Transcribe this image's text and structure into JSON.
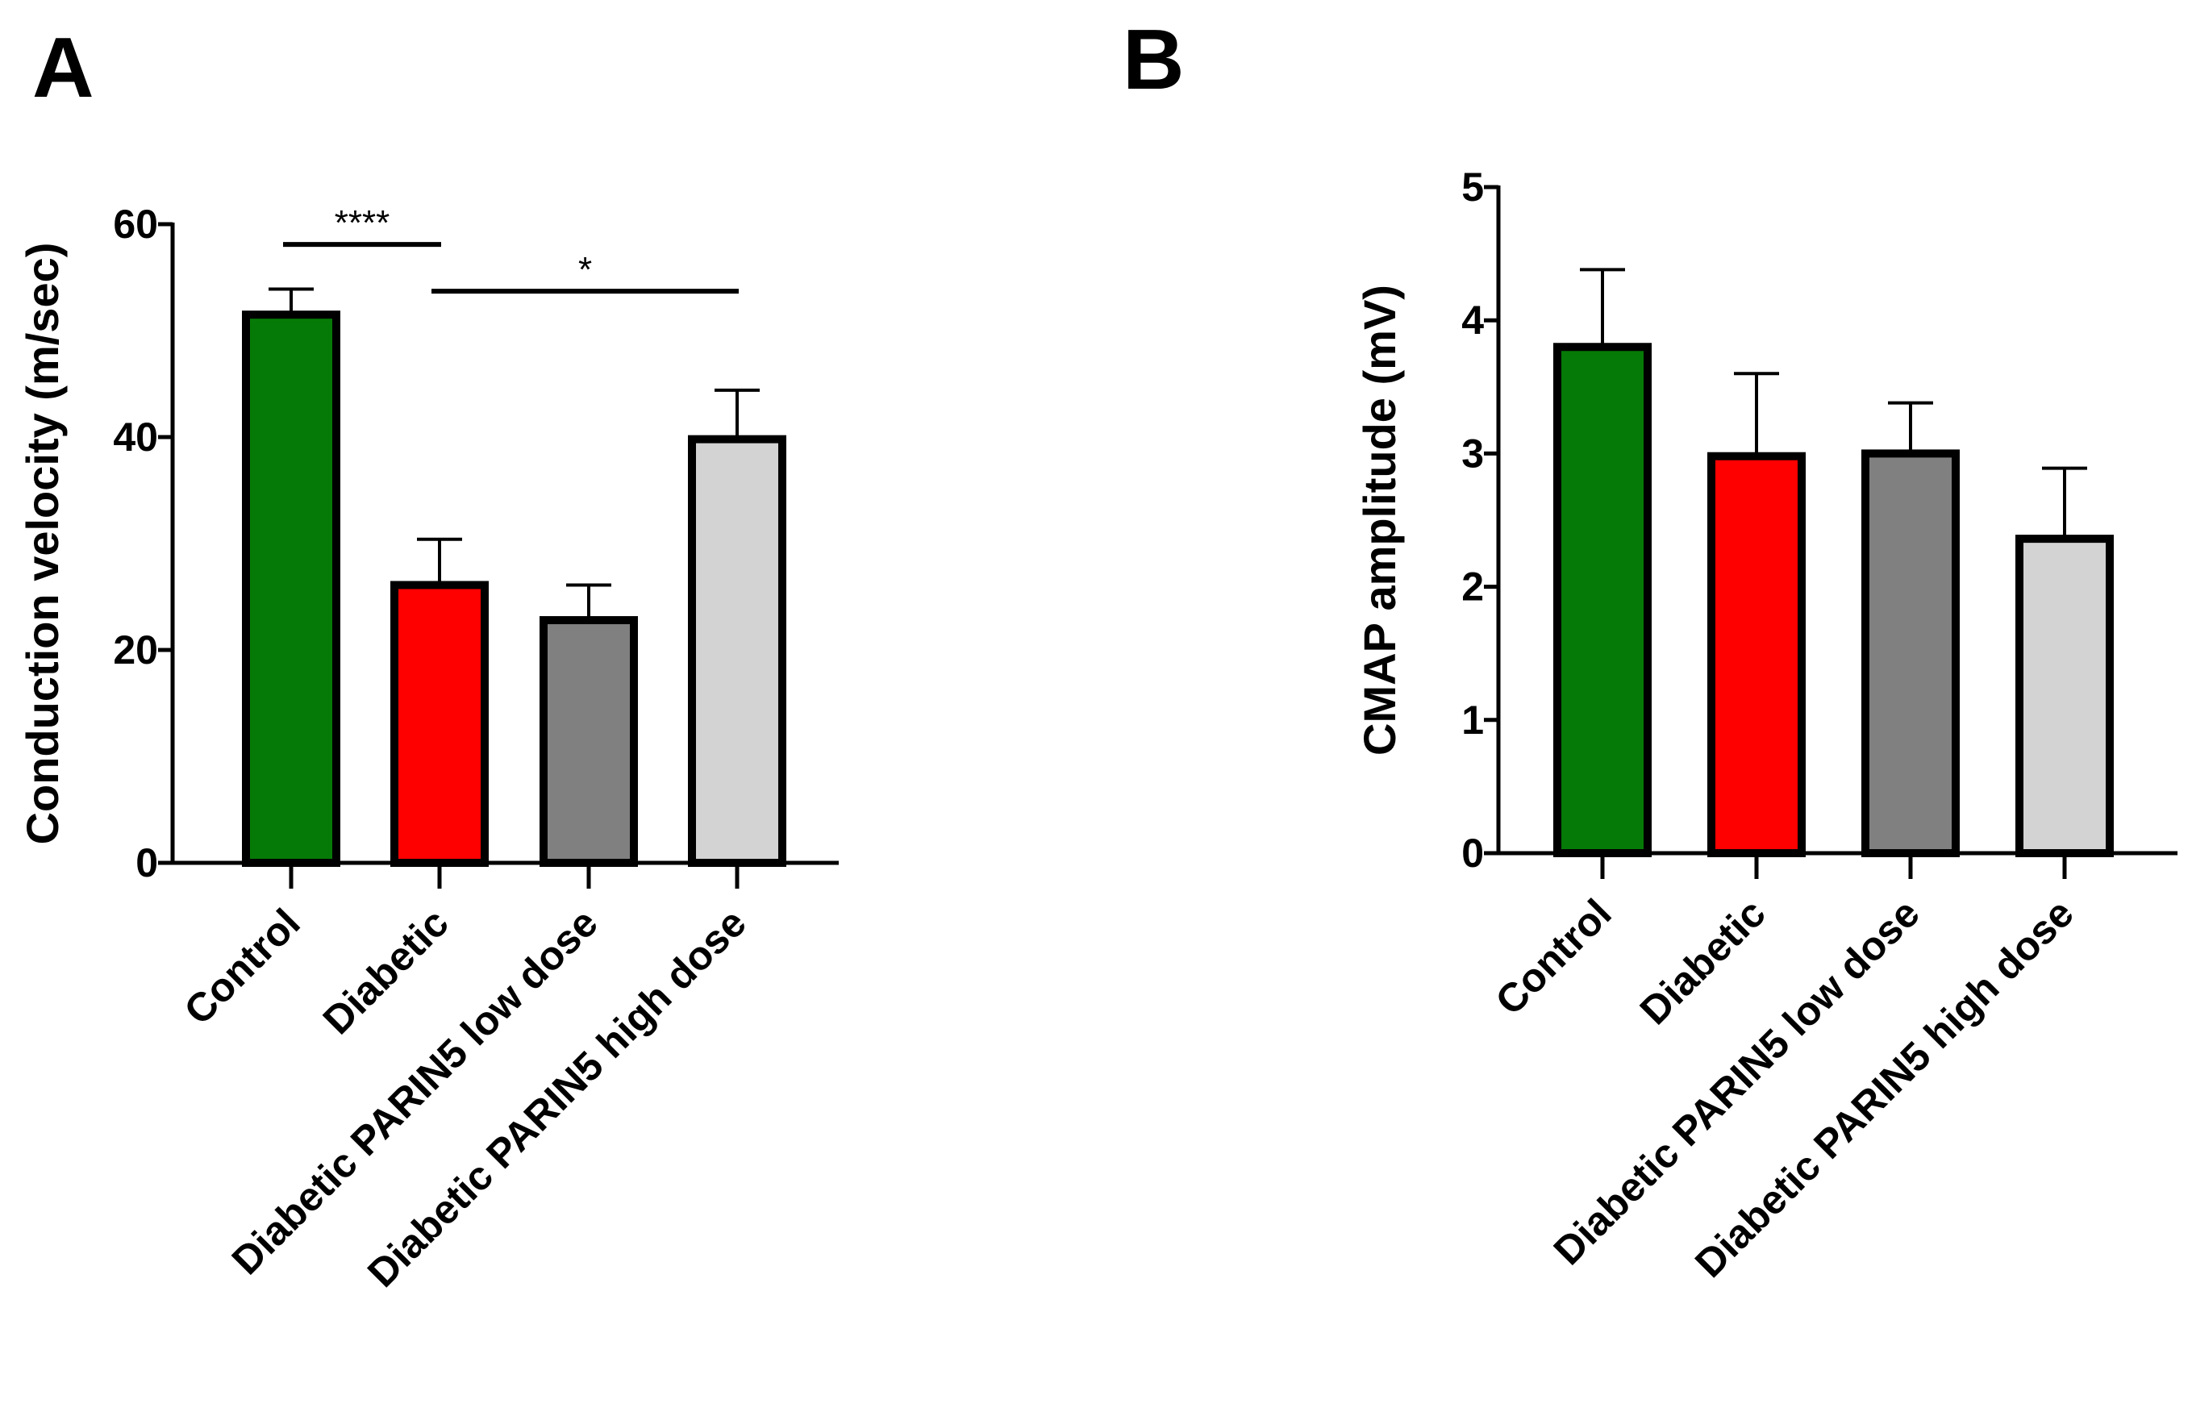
{
  "figure": {
    "panels": [
      "A",
      "B"
    ]
  },
  "chart_data": [
    {
      "panel": "A",
      "type": "bar",
      "title": "",
      "xlabel": "",
      "ylabel": "Conduction velocity (m/sec)",
      "ylim": [
        0,
        60
      ],
      "yticks": [
        0,
        20,
        40,
        60
      ],
      "categories": [
        "Control",
        "Diabetic",
        "Diabetic PARIN5 low dose",
        "Diabetic PARIN5 high dose"
      ],
      "values": [
        51.5,
        26.1,
        22.8,
        39.8
      ],
      "errors": [
        2.4,
        4.3,
        3.3,
        4.6
      ],
      "colors": [
        "#067a06",
        "#ff0000",
        "#808080",
        "#d3d3d3"
      ],
      "significance": [
        {
          "from": 0,
          "to": 1,
          "label": "****",
          "y": 58.1
        },
        {
          "from": 1,
          "to": 3,
          "label": "*",
          "y": 53.7
        }
      ]
    },
    {
      "panel": "B",
      "type": "bar",
      "title": "",
      "xlabel": "",
      "ylabel": "CMAP amplitude (mV)",
      "ylim": [
        0,
        5
      ],
      "yticks": [
        0,
        1,
        2,
        3,
        4,
        5
      ],
      "categories": [
        "Control",
        "Diabetic",
        "Diabetic PARIN5 low dose",
        "Diabetic PARIN5 high dose"
      ],
      "values": [
        3.8,
        2.98,
        3.0,
        2.36
      ],
      "errors": [
        0.58,
        0.62,
        0.38,
        0.53
      ],
      "colors": [
        "#067a06",
        "#ff0000",
        "#808080",
        "#d3d3d3"
      ],
      "significance": []
    }
  ]
}
